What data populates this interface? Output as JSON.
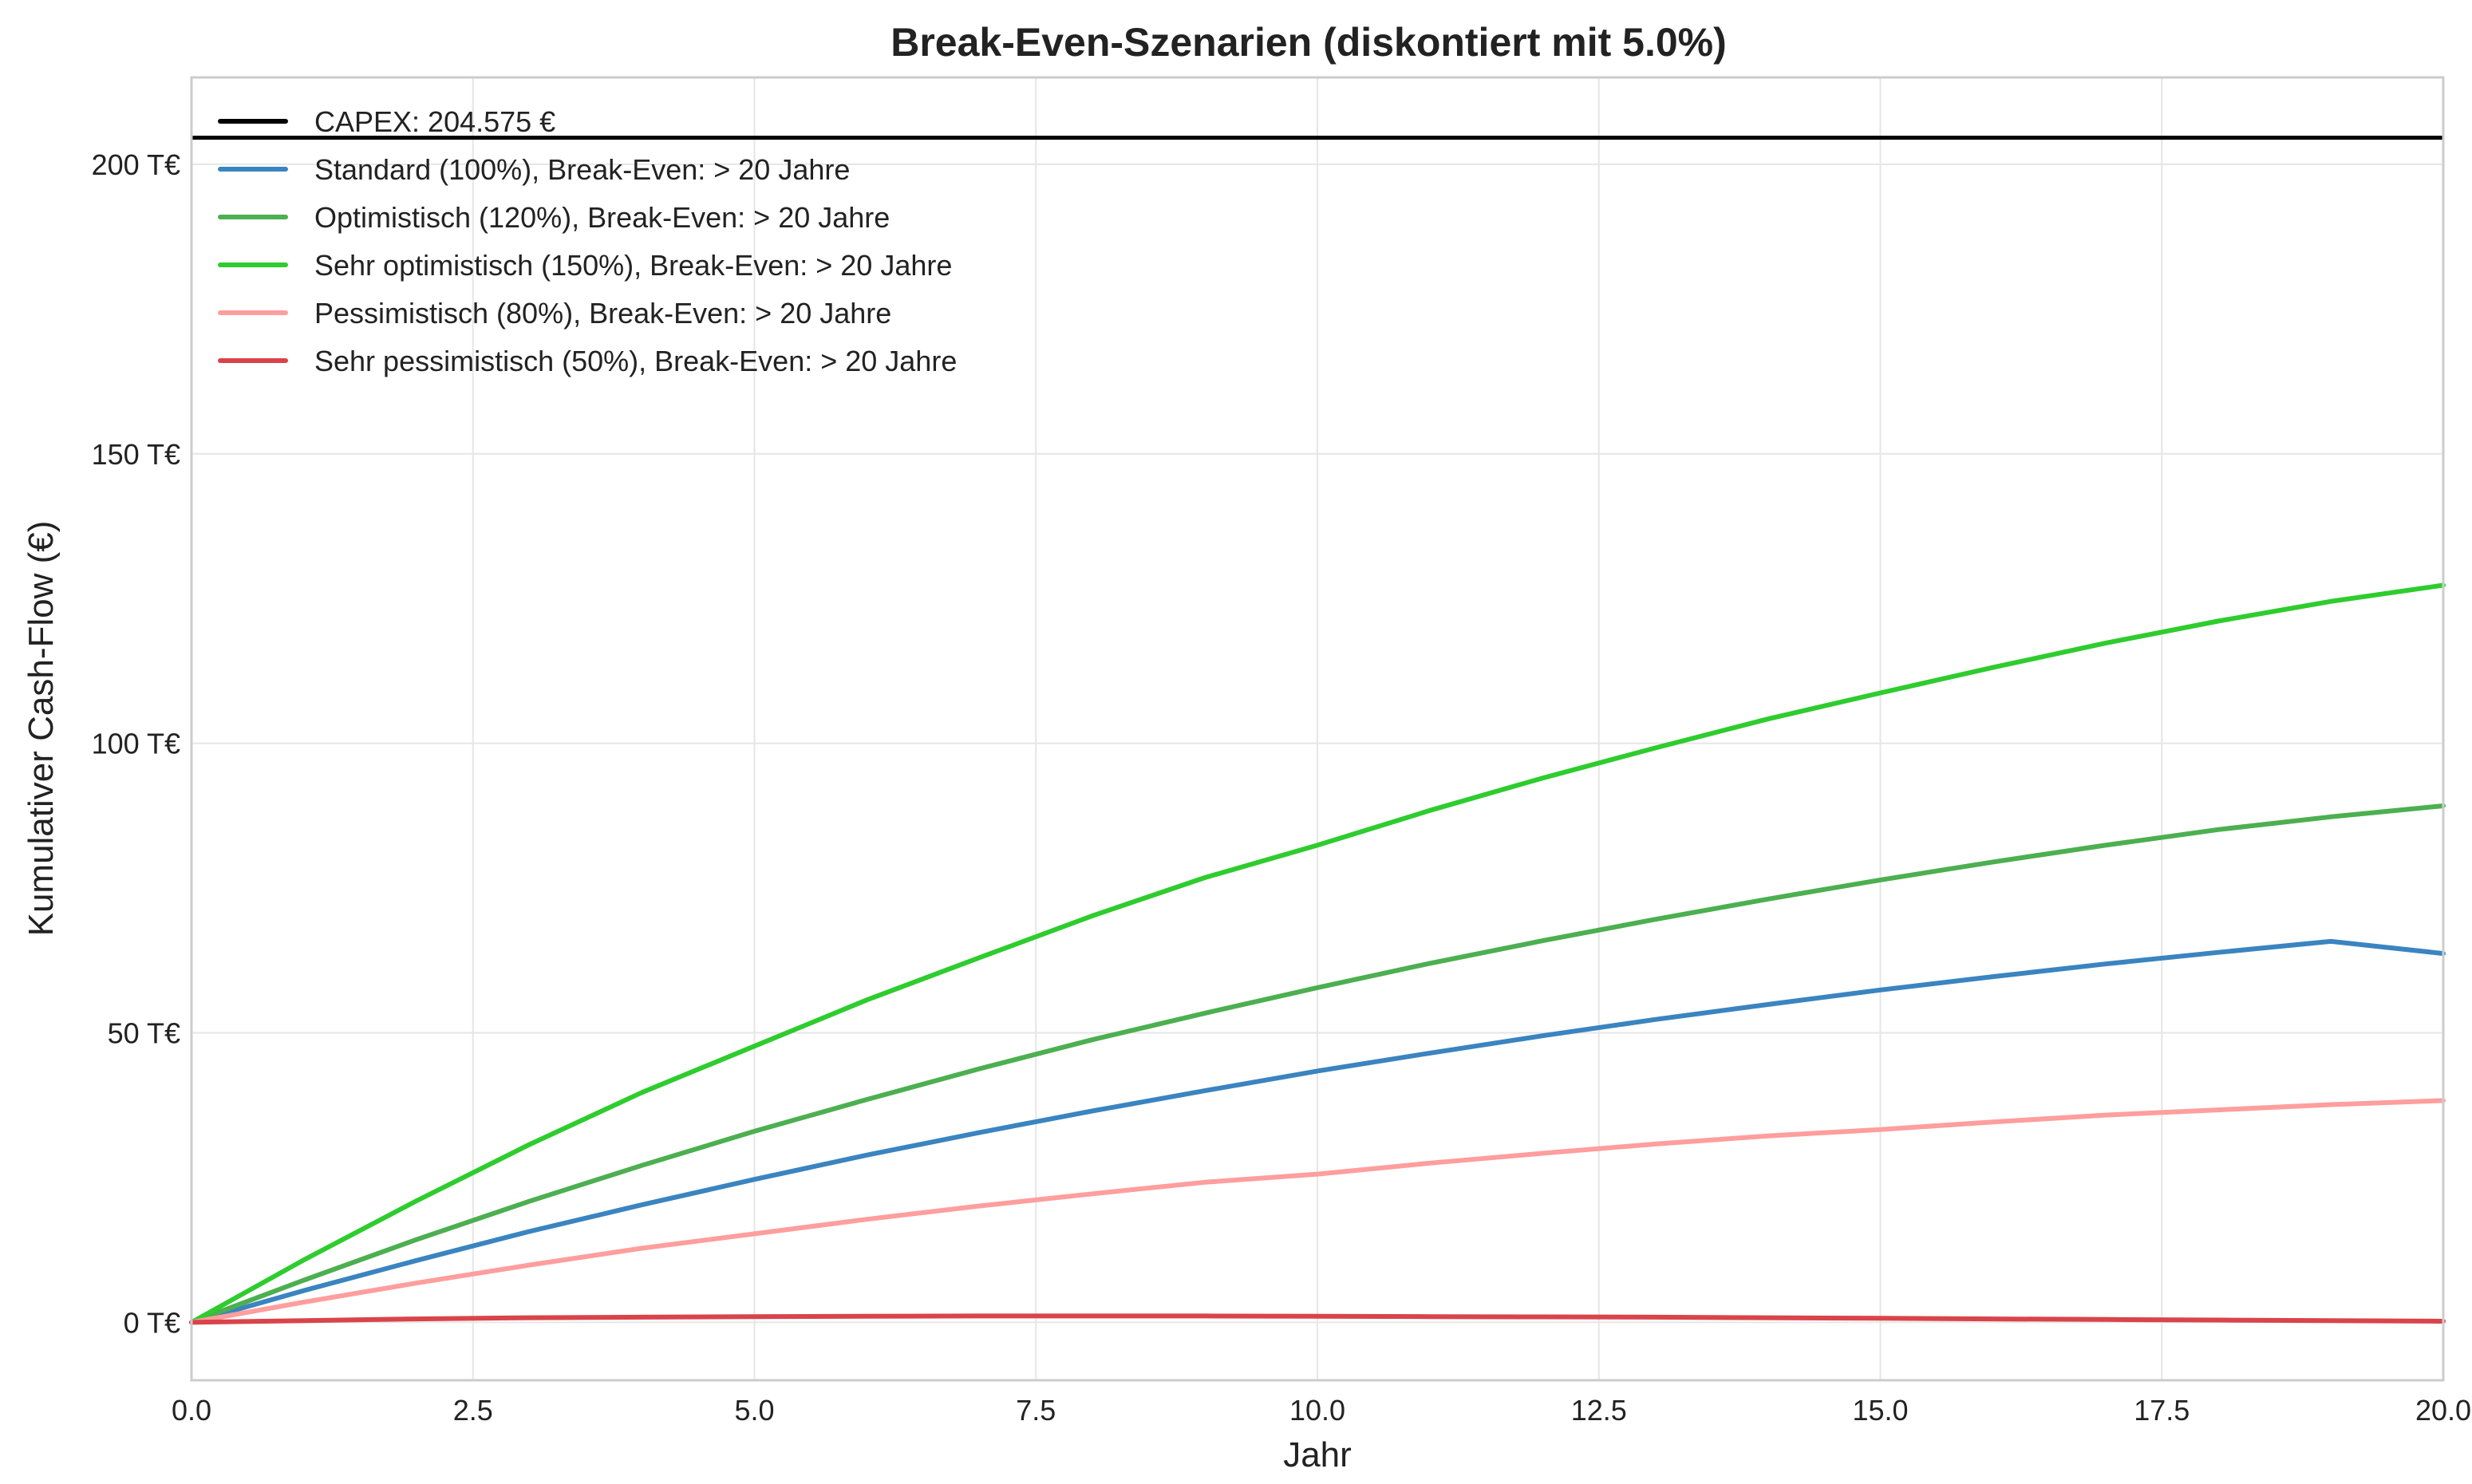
{
  "chart_data": {
    "type": "line",
    "title": "Break-Even-Szenarien (diskontiert mit 5.0%)",
    "xlabel": "Jahr",
    "ylabel": "Kumulativer Cash-Flow (€)",
    "xlim": [
      0,
      20
    ],
    "ylim": [
      -10000,
      215000
    ],
    "xticks": [
      0,
      2.5,
      5,
      7.5,
      10,
      12.5,
      15,
      17.5,
      20
    ],
    "xtick_labels": [
      "0.0",
      "2.5",
      "5.0",
      "7.5",
      "10.0",
      "12.5",
      "15.0",
      "17.5",
      "20.0"
    ],
    "yticks": [
      0,
      50000,
      100000,
      150000,
      200000
    ],
    "ytick_labels": [
      "0 T€",
      "50 T€",
      "100 T€",
      "150 T€",
      "200 T€"
    ],
    "grid": true,
    "legend_position": "upper-left",
    "capex": {
      "name": "CAPEX: 204.575 €",
      "value": 204575,
      "color": "#000000"
    },
    "x": [
      0,
      1,
      2,
      3,
      4,
      5,
      6,
      7,
      8,
      9,
      10,
      11,
      12,
      13,
      14,
      15,
      16,
      17,
      18,
      19,
      20
    ],
    "series": [
      {
        "name": "Standard (100%), Break-Even: > 20 Jahre",
        "color": "#3a84c0",
        "values": [
          0,
          5500,
          10700,
          15700,
          20300,
          24700,
          28900,
          32800,
          36500,
          40000,
          43400,
          46500,
          49500,
          52300,
          54900,
          57400,
          59700,
          61900,
          63900,
          65800,
          63700
        ]
      },
      {
        "name": "Optimistisch (120%), Break-Even: > 20 Jahre",
        "color": "#4caf50",
        "values": [
          0,
          7300,
          14300,
          20900,
          27100,
          33000,
          38500,
          43800,
          48800,
          53400,
          57800,
          62000,
          65900,
          69600,
          73100,
          76400,
          79500,
          82400,
          85100,
          87300,
          89200
        ]
      },
      {
        "name": "Sehr optimistisch (150%), Break-Even: > 20 Jahre",
        "color": "#2ecc2e",
        "values": [
          0,
          10800,
          21000,
          30700,
          39700,
          47700,
          55700,
          63000,
          70200,
          76800,
          82400,
          88400,
          94000,
          99200,
          104200,
          108700,
          113100,
          117300,
          121100,
          124500,
          127300
        ]
      },
      {
        "name": "Pessimistisch (80%), Break-Even: > 20 Jahre",
        "color": "#ff9e9e",
        "values": [
          0,
          3500,
          6800,
          9900,
          12800,
          15300,
          17800,
          20100,
          22200,
          24200,
          25600,
          27500,
          29200,
          30800,
          32200,
          33300,
          34600,
          35800,
          36700,
          37600,
          38300
        ]
      },
      {
        "name": "Sehr pessimistisch (50%), Break-Even: > 20 Jahre",
        "color": "#d9444a",
        "values": [
          0,
          300,
          600,
          800,
          900,
          1000,
          1050,
          1100,
          1100,
          1100,
          1050,
          1000,
          950,
          900,
          800,
          700,
          600,
          500,
          400,
          300,
          200
        ]
      }
    ]
  }
}
